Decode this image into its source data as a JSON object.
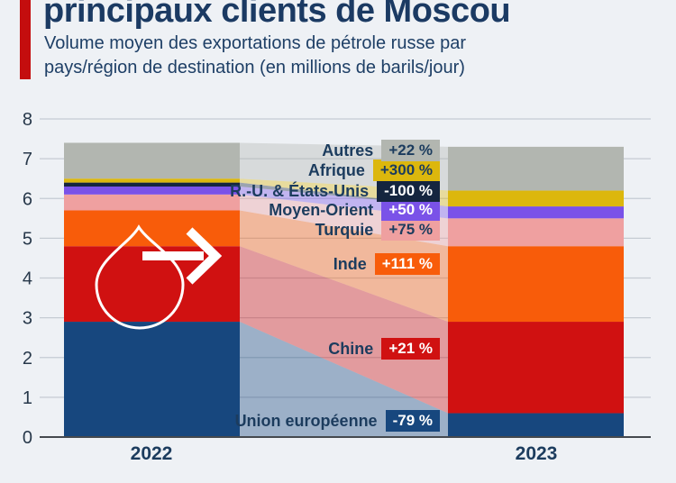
{
  "header": {
    "title": "principaux clients de Moscou",
    "subtitle_line1": "Volume moyen des exportations de pétrole russe par",
    "subtitle_line2": "pays/région de destination (en millions de barils/jour)",
    "accent_color": "#c40d0e",
    "title_color": "#1b3a63",
    "subtitle_color": "#1e3f66"
  },
  "chart_data": {
    "type": "bar",
    "subtype": "stacked-slope-comparison",
    "unit": "millions de barils/jour",
    "categories": [
      "2022",
      "2023"
    ],
    "ylim": [
      0,
      8
    ],
    "ytick_step": 1,
    "grid": true,
    "legend_position": "center-flow-labels",
    "series": [
      {
        "name": "Union européenne",
        "values": [
          2.9,
          0.6
        ],
        "change": "-79 %",
        "color": "#17477e",
        "badge_text_color": "#ffffff"
      },
      {
        "name": "Chine",
        "values": [
          1.9,
          2.3
        ],
        "change": "+21 %",
        "color": "#d01111",
        "badge_text_color": "#ffffff"
      },
      {
        "name": "Inde",
        "values": [
          0.9,
          1.9
        ],
        "change": "+111 %",
        "color": "#f85c0a",
        "badge_text_color": "#ffffff"
      },
      {
        "name": "Turquie",
        "values": [
          0.4,
          0.7
        ],
        "change": "+75 %",
        "color": "#efa0a0",
        "badge_text_color": "#1c3c5e"
      },
      {
        "name": "Moyen-Orient",
        "values": [
          0.2,
          0.3
        ],
        "change": "+50 %",
        "color": "#7a52e8",
        "badge_text_color": "#ffffff"
      },
      {
        "name": "R.-U. & États-Unis",
        "values": [
          0.1,
          0.0
        ],
        "change": "-100 %",
        "color": "#15253f",
        "badge_text_color": "#ffffff"
      },
      {
        "name": "Afrique",
        "values": [
          0.1,
          0.4
        ],
        "change": "+300 %",
        "color": "#dcb70d",
        "badge_text_color": "#1c3c5e"
      },
      {
        "name": "Autres",
        "values": [
          0.9,
          1.1
        ],
        "change": "+22 %",
        "color": "#b2b6b0",
        "badge_text_color": "#1c3c5e"
      }
    ],
    "label_text_color": "#1c3c5e",
    "gridline_color": "#c5cbd3",
    "baseline_color": "#45494e"
  }
}
